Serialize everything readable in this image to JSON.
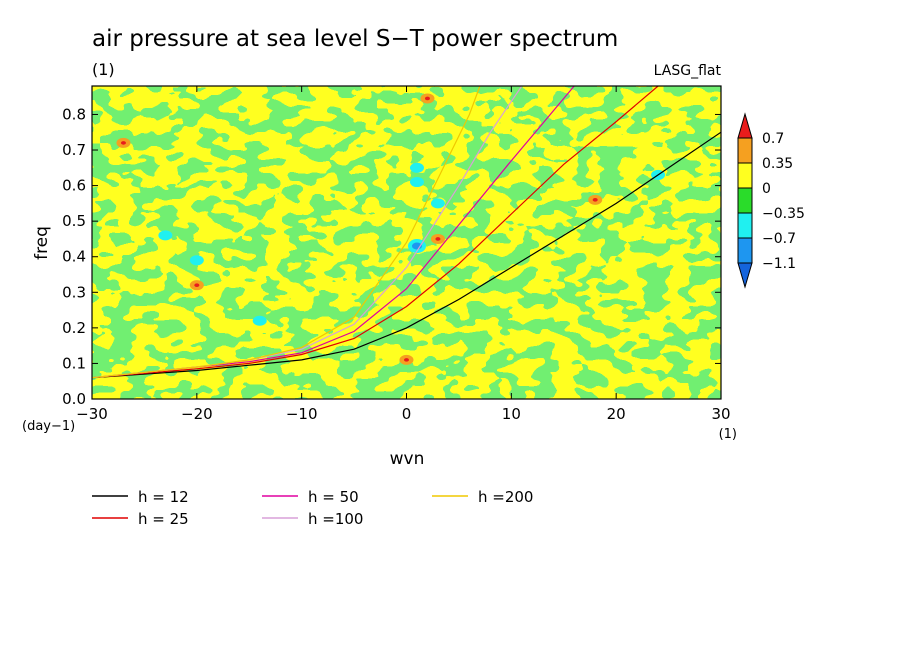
{
  "chart_data": {
    "type": "heatmap",
    "title": "air pressure at sea level S−T power spectrum",
    "subtitle": "(1)",
    "model_label": "LASG_flat",
    "xlabel": "wvn",
    "ylabel": "freq",
    "x_unit": "(1)",
    "y_unit": "(day−1)",
    "xlim": [
      -30,
      30
    ],
    "ylim": [
      0,
      0.88
    ],
    "x_ticks": [
      -30,
      -20,
      -10,
      0,
      10,
      20,
      30
    ],
    "x_tick_labels": [
      "−30",
      "−20",
      "−10",
      "0",
      "10",
      "20",
      "30"
    ],
    "y_ticks": [
      0,
      0.1,
      0.2,
      0.3,
      0.4,
      0.5,
      0.6,
      0.7,
      0.8
    ],
    "y_tick_labels": [
      "0.0",
      "0.1",
      "0.2",
      "0.3",
      "0.4",
      "0.5",
      "0.6",
      "0.7",
      "0.8"
    ],
    "colorbar": {
      "levels": [
        0.7,
        0.35,
        0,
        -0.35,
        -0.7,
        -1.1
      ],
      "level_labels": [
        "0.7",
        "0.35",
        "0",
        "−0.35",
        "−0.7",
        "−1.1"
      ],
      "colors": [
        "#e81c1c",
        "#f5a020",
        "#ffff20",
        "#2adc2a",
        "#20f0f0",
        "#1e96f0",
        "#1464dc"
      ]
    },
    "field_colors": {
      "yellow": "#ffff20",
      "green": "#2adc2a",
      "orange": "#f5a020",
      "cyan": "#20f0f0",
      "blue": "#1e96f0"
    },
    "dispersion_curves": [
      {
        "name": "h = 12",
        "h": 12,
        "color": "#000000",
        "points": [
          [
            -30,
            0.06
          ],
          [
            -20,
            0.08
          ],
          [
            -15,
            0.095
          ],
          [
            -10,
            0.11
          ],
          [
            -5,
            0.14
          ],
          [
            0,
            0.2
          ],
          [
            5,
            0.28
          ],
          [
            10,
            0.37
          ],
          [
            15,
            0.46
          ],
          [
            20,
            0.55
          ],
          [
            25,
            0.65
          ],
          [
            30,
            0.75
          ]
        ]
      },
      {
        "name": "h = 25",
        "h": 25,
        "color": "#e00000",
        "points": [
          [
            -30,
            0.06
          ],
          [
            -20,
            0.085
          ],
          [
            -15,
            0.1
          ],
          [
            -10,
            0.125
          ],
          [
            -5,
            0.17
          ],
          [
            0,
            0.26
          ],
          [
            5,
            0.38
          ],
          [
            10,
            0.52
          ],
          [
            15,
            0.66
          ],
          [
            20,
            0.78
          ],
          [
            24,
            0.88
          ]
        ]
      },
      {
        "name": "h = 50",
        "h": 50,
        "color": "#e000a0",
        "points": [
          [
            -30,
            0.06
          ],
          [
            -20,
            0.09
          ],
          [
            -15,
            0.105
          ],
          [
            -10,
            0.13
          ],
          [
            -5,
            0.19
          ],
          [
            0,
            0.31
          ],
          [
            5,
            0.49
          ],
          [
            10,
            0.67
          ],
          [
            14,
            0.81
          ],
          [
            16,
            0.88
          ]
        ]
      },
      {
        "name": "h =100",
        "h": 100,
        "color": "#d8a0d8",
        "points": [
          [
            -30,
            0.06
          ],
          [
            -20,
            0.09
          ],
          [
            -15,
            0.11
          ],
          [
            -10,
            0.14
          ],
          [
            -5,
            0.21
          ],
          [
            0,
            0.37
          ],
          [
            5,
            0.6
          ],
          [
            8,
            0.75
          ],
          [
            11,
            0.88
          ]
        ]
      },
      {
        "name": "h =200",
        "h": 200,
        "color": "#f0c800",
        "points": [
          [
            -30,
            0.06
          ],
          [
            -20,
            0.09
          ],
          [
            -15,
            0.11
          ],
          [
            -10,
            0.145
          ],
          [
            -5,
            0.23
          ],
          [
            0,
            0.44
          ],
          [
            3,
            0.62
          ],
          [
            6,
            0.8
          ],
          [
            7,
            0.88
          ]
        ]
      }
    ],
    "legend": [
      {
        "label": "h = 12",
        "color": "#000000"
      },
      {
        "label": "h = 25",
        "color": "#e00000"
      },
      {
        "label": "h = 50",
        "color": "#e000a0"
      },
      {
        "label": "h =100",
        "color": "#d8a0d8"
      },
      {
        "label": "h =200",
        "color": "#f0c800"
      }
    ],
    "annotations": [
      {
        "label": "positive",
        "x": 2,
        "y": 0.845,
        "kind": "orange"
      },
      {
        "label": "positive",
        "x": 0,
        "y": 0.11,
        "kind": "orange"
      },
      {
        "label": "positive",
        "x": 3,
        "y": 0.45,
        "kind": "orange"
      },
      {
        "label": "positive",
        "x": -20,
        "y": 0.32,
        "kind": "orange"
      },
      {
        "label": "positive",
        "x": -27,
        "y": 0.72,
        "kind": "orange"
      },
      {
        "label": "positive",
        "x": 18,
        "y": 0.56,
        "kind": "orange"
      },
      {
        "label": "negative",
        "x": 1,
        "y": 0.43,
        "kind": "blue"
      },
      {
        "label": "negative",
        "x": 1,
        "y": 0.65,
        "kind": "cyan"
      },
      {
        "label": "negative",
        "x": 1,
        "y": 0.61,
        "kind": "cyan"
      },
      {
        "label": "negative",
        "x": 3,
        "y": 0.55,
        "kind": "cyan"
      },
      {
        "label": "negative",
        "x": -23,
        "y": 0.46,
        "kind": "cyan"
      },
      {
        "label": "negative",
        "x": -20,
        "y": 0.39,
        "kind": "cyan"
      },
      {
        "label": "negative",
        "x": -14,
        "y": 0.22,
        "kind": "cyan"
      },
      {
        "label": "negative",
        "x": 24,
        "y": 0.63,
        "kind": "cyan"
      }
    ]
  }
}
